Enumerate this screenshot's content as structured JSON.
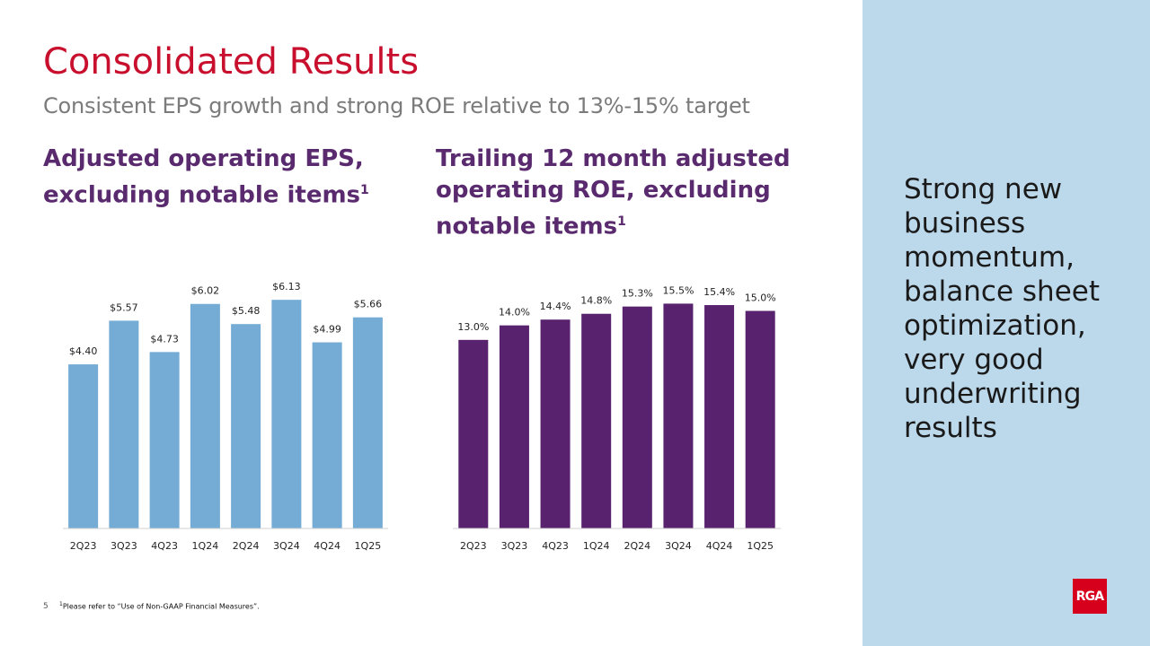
{
  "title": "Consolidated Results",
  "subtitle": "Consistent EPS growth and strong ROE relative to 13%-15% target",
  "chart_data": [
    {
      "type": "bar",
      "title": "Adjusted operating EPS, excluding notable items",
      "title_note": "1",
      "categories": [
        "2Q23",
        "3Q23",
        "4Q23",
        "1Q24",
        "2Q24",
        "3Q24",
        "4Q24",
        "1Q25"
      ],
      "values": [
        4.4,
        5.57,
        4.73,
        6.02,
        5.48,
        6.13,
        4.99,
        5.66
      ],
      "value_labels": [
        "$4.40",
        "$5.57",
        "$4.73",
        "$6.02",
        "$5.48",
        "$6.13",
        "$4.99",
        "$5.66"
      ],
      "color": "#74acd5",
      "ylim": [
        0,
        7
      ]
    },
    {
      "type": "bar",
      "title": "Trailing 12 month adjusted operating ROE, excluding notable items",
      "title_note": "1",
      "categories": [
        "2Q23",
        "3Q23",
        "4Q23",
        "1Q24",
        "2Q24",
        "3Q24",
        "4Q24",
        "1Q25"
      ],
      "values": [
        13.0,
        14.0,
        14.4,
        14.8,
        15.3,
        15.5,
        15.4,
        15.0
      ],
      "value_labels": [
        "13.0%",
        "14.0%",
        "14.4%",
        "14.8%",
        "15.3%",
        "15.5%",
        "15.4%",
        "15.0%"
      ],
      "color": "#58226e",
      "ylim": [
        0,
        18
      ]
    }
  ],
  "side_text": "Strong new business momentum, balance sheet optimization, very good underwriting results",
  "page_number": "5",
  "footnote": {
    "mark": "1",
    "text": "Please refer to “Use of Non-GAAP Financial Measures”."
  },
  "logo": "RGA"
}
